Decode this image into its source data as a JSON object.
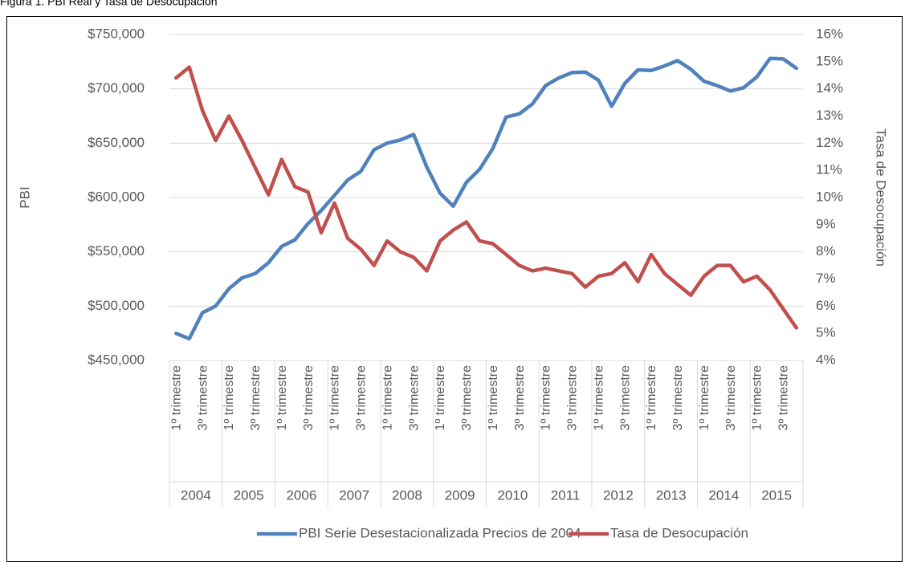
{
  "caption": "Figura 1. PBI Real y Tasa de Desocupación",
  "chart_data": {
    "type": "line",
    "y_label": "PBI",
    "y2_label": "Tasa de Desocupación",
    "categories": [
      "1º trimestre",
      null,
      "3º trimestre",
      null,
      "1º trimestre",
      null,
      "3º trimestre",
      null,
      "1º trimestre",
      null,
      "3º trimestre",
      null,
      "1º trimestre",
      null,
      "3º trimestre",
      null,
      "1º trimestre",
      null,
      "3º trimestre",
      null,
      "1º trimestre",
      null,
      "3º trimestre",
      null,
      "1º trimestre",
      null,
      "3º trimestre",
      null,
      "1º trimestre",
      null,
      "3º trimestre",
      null,
      "1º trimestre",
      null,
      "3º trimestre",
      null,
      "1º trimestre",
      null,
      "3º trimestre",
      null,
      "1º trimestre",
      null,
      "3º trimestre",
      null,
      "1º trimestre",
      null,
      "3º trimestre",
      null
    ],
    "groups": [
      "2004",
      "2005",
      "2006",
      "2007",
      "2008",
      "2009",
      "2010",
      "2011",
      "2012",
      "2013",
      "2014",
      "2015"
    ],
    "series": [
      {
        "name": "PBI Serie Desestacionalizada Precios de 2004",
        "color": "#4f81bd",
        "axis": "y",
        "values": [
          475000,
          470000,
          494000,
          500000,
          516000,
          526000,
          530000,
          540000,
          555000,
          561000,
          576000,
          588000,
          602000,
          616000,
          624000,
          644000,
          650000,
          653000,
          658000,
          628000,
          604000,
          592000,
          614000,
          626000,
          645000,
          674000,
          677000,
          686000,
          703000,
          710000,
          715000,
          715500,
          708000,
          684000,
          705000,
          717500,
          717000,
          721000,
          726000,
          718000,
          707000,
          703000,
          698000,
          701000,
          711000,
          728000,
          727500,
          719000
        ]
      },
      {
        "name": "Tasa de Desocupación",
        "color": "#c0504d",
        "axis": "y2",
        "values": [
          14.4,
          14.8,
          13.2,
          12.1,
          13.0,
          12.1,
          11.1,
          10.1,
          11.4,
          10.4,
          10.2,
          8.7,
          9.8,
          8.5,
          8.1,
          7.5,
          8.4,
          8.0,
          7.8,
          7.3,
          8.4,
          8.8,
          9.1,
          8.4,
          8.3,
          7.9,
          7.5,
          7.3,
          7.4,
          7.3,
          7.2,
          6.7,
          7.1,
          7.2,
          7.6,
          6.9,
          7.9,
          7.2,
          6.8,
          6.4,
          7.1,
          7.5,
          7.5,
          6.9,
          7.1,
          6.6,
          5.9,
          5.2
        ]
      }
    ],
    "ylim": [
      450000,
      750000
    ],
    "yticks": [
      {
        "value": 450000,
        "label": "$450,000"
      },
      {
        "value": 500000,
        "label": "$500,000"
      },
      {
        "value": 550000,
        "label": "$550,000"
      },
      {
        "value": 600000,
        "label": "$600,000"
      },
      {
        "value": 650000,
        "label": "$650,000"
      },
      {
        "value": 700000,
        "label": "$700,000"
      },
      {
        "value": 750000,
        "label": "$750,000"
      }
    ],
    "y2lim": [
      4,
      16
    ],
    "y2ticks": [
      {
        "value": 4,
        "label": "4%"
      },
      {
        "value": 5,
        "label": "5%"
      },
      {
        "value": 6,
        "label": "6%"
      },
      {
        "value": 7,
        "label": "7%"
      },
      {
        "value": 8,
        "label": "8%"
      },
      {
        "value": 9,
        "label": "9%"
      },
      {
        "value": 10,
        "label": "10%"
      },
      {
        "value": 11,
        "label": "11%"
      },
      {
        "value": 12,
        "label": "12%"
      },
      {
        "value": 13,
        "label": "13%"
      },
      {
        "value": 14,
        "label": "14%"
      },
      {
        "value": 15,
        "label": "15%"
      },
      {
        "value": 16,
        "label": "16%"
      }
    ],
    "grid": true,
    "legend": "bottom"
  }
}
